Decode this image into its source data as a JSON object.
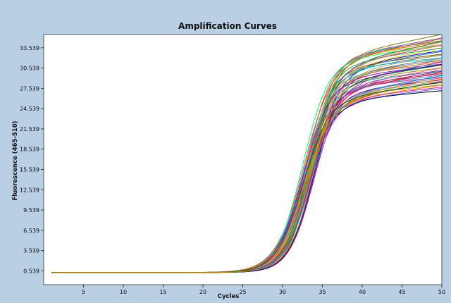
{
  "chart_data": {
    "type": "line",
    "title": "Amplification Curves",
    "xlabel": "Cycles",
    "ylabel": "Fluorescence (465-510)",
    "xlim": [
      0,
      50
    ],
    "ylim": [
      -1500,
      35500
    ],
    "x_ticks": [
      "5",
      "10",
      "15",
      "20",
      "25",
      "30",
      "35",
      "40",
      "45",
      "50"
    ],
    "y_ticks": [
      "0.539",
      "3.539",
      "6.539",
      "9.539",
      "12.539",
      "15.539",
      "18.539",
      "21.539",
      "24.539",
      "27.539",
      "30.539",
      "33.539"
    ],
    "grid": false,
    "legend": "none",
    "x_start": 1,
    "x_end": 50,
    "baseline": 300,
    "midpoint_range": [
      32.5,
      34.0
    ],
    "slope_range": [
      1.5,
      1.85
    ],
    "plateau_range": [
      25800,
      33200
    ],
    "series_count": 48,
    "series_colors": [
      "#ff0000",
      "#008000",
      "#0000ff",
      "#ff00ff",
      "#00bcd4",
      "#ffd200",
      "#ff8000",
      "#7a3fbf",
      "#8b4513",
      "#000000",
      "#ff69b4",
      "#2e8b57",
      "#4169e1",
      "#dc143c",
      "#00ced1",
      "#808000",
      "#b22222",
      "#1e90ff",
      "#228b22",
      "#ff1493",
      "#daa520",
      "#6a5acd",
      "#20b2aa",
      "#a0522d",
      "#9acd32",
      "#c71585",
      "#4682b4",
      "#d2691e",
      "#8b008b",
      "#3cb371",
      "#ff4500",
      "#708090",
      "#ff6347",
      "#00ff7f",
      "#0080ff",
      "#bdb76b",
      "#e9967a",
      "#5f9ea0",
      "#9400d3",
      "#556b2f",
      "#ff8c00",
      "#191970",
      "#00a86b",
      "#c0a000",
      "#8a2be2",
      "#cd5c5c",
      "#006400",
      "#b8860b"
    ]
  }
}
